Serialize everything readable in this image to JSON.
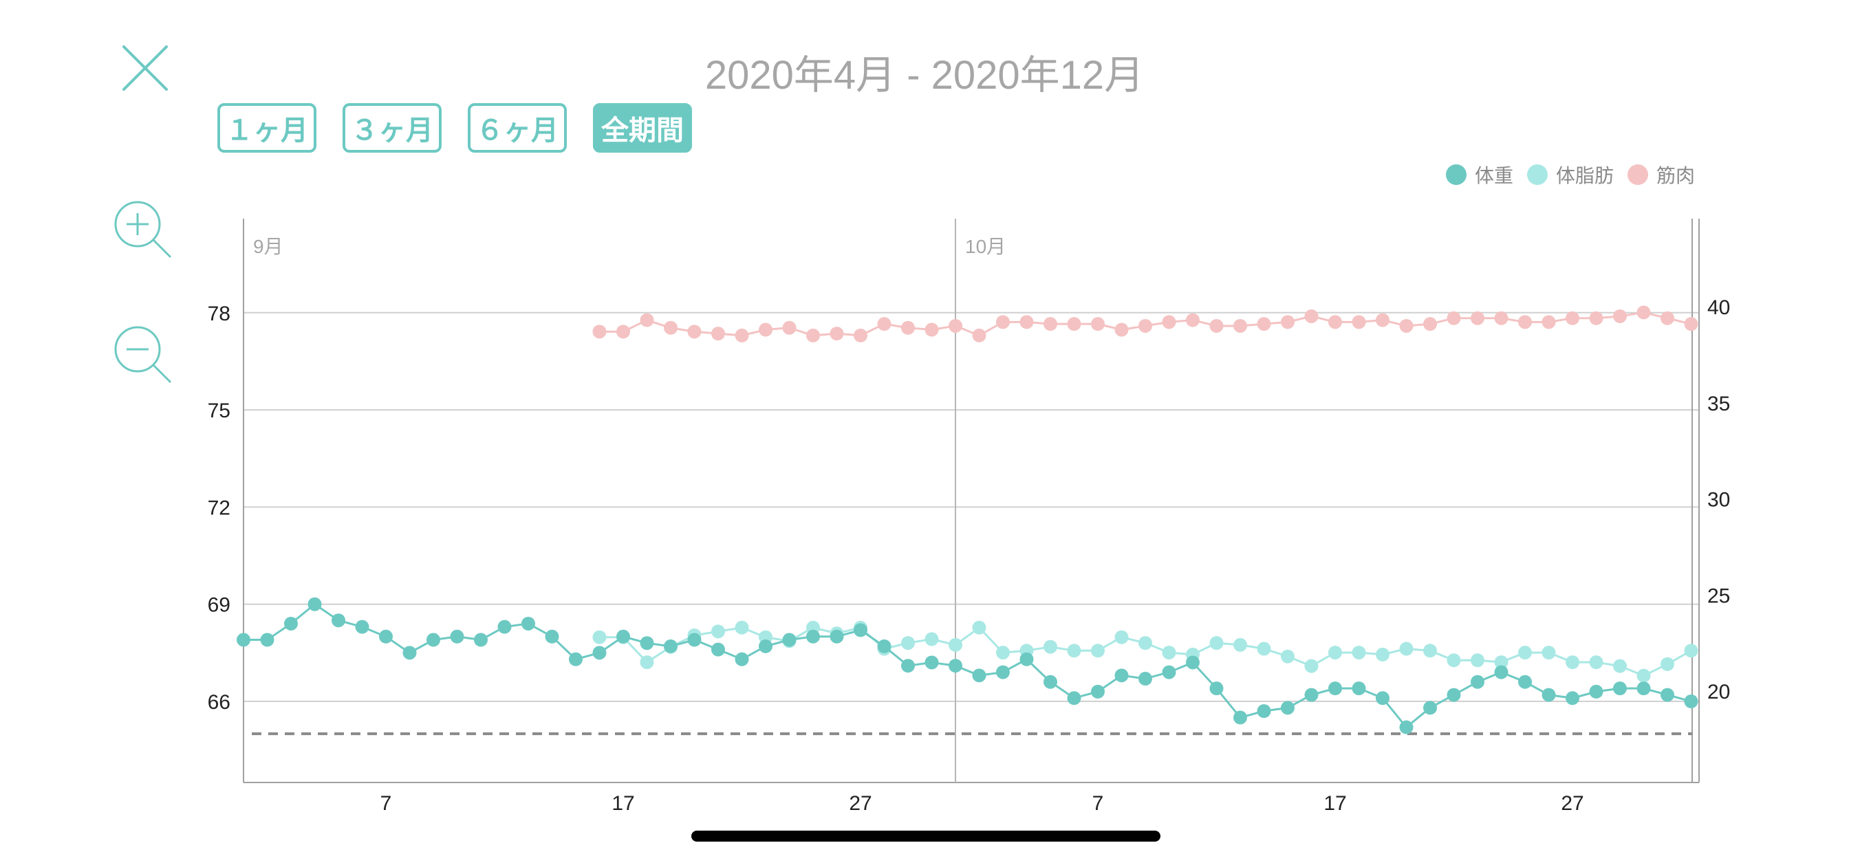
{
  "header": {
    "title": "2020年4月 - 2020年12月",
    "close_icon": "close-icon"
  },
  "period_tabs": [
    {
      "label": "１ヶ月",
      "active": false
    },
    {
      "label": "３ヶ月",
      "active": false
    },
    {
      "label": "６ヶ月",
      "active": false
    },
    {
      "label": "全期間",
      "active": true
    }
  ],
  "zoom": {
    "in_icon": "zoom-in-icon",
    "out_icon": "zoom-out-icon"
  },
  "colors": {
    "accent": "#6cc9c2",
    "weight": "#6cc9c2",
    "body_fat": "#a8e8e4",
    "muscle": "#f4c2c2",
    "grid": "#d0d0d0",
    "target_line": "#8a8a8a"
  },
  "chart_data": {
    "type": "line",
    "x_start_label": "9/1",
    "x_labels": [
      "7",
      "17",
      "27",
      "7",
      "17",
      "27"
    ],
    "x_label_positions": [
      6,
      16,
      26,
      36,
      46,
      56
    ],
    "month_labels": [
      "9月",
      "10月"
    ],
    "month_label_positions": [
      0,
      30
    ],
    "y_left": {
      "ticks": [
        "78",
        "75",
        "72",
        "69",
        "66"
      ],
      "tick_values": [
        78,
        75,
        72,
        69,
        66
      ],
      "range": [
        64.5,
        80.5
      ]
    },
    "y_right": {
      "ticks": [
        "40",
        "35",
        "30",
        "25",
        "20"
      ],
      "tick_values": [
        40,
        35,
        30,
        25,
        20
      ]
    },
    "target_line": 65,
    "grid": true,
    "legend": "top-right",
    "series": [
      {
        "name": "体重",
        "axis": "left",
        "x": [
          0,
          1,
          2,
          3,
          4,
          5,
          6,
          7,
          8,
          9,
          10,
          11,
          12,
          13,
          14,
          15,
          16,
          17,
          18,
          19,
          20,
          21,
          22,
          23,
          24,
          25,
          26,
          27,
          28,
          29,
          30,
          31,
          32,
          33,
          34,
          35,
          36,
          37,
          38,
          39,
          40,
          41,
          42,
          43,
          44,
          45,
          46,
          47,
          48,
          49,
          50,
          51,
          52,
          53,
          54,
          55,
          56,
          57,
          58,
          59,
          60,
          61
        ],
        "values": [
          67.9,
          67.9,
          68.4,
          69.0,
          68.5,
          68.3,
          68.0,
          67.5,
          67.9,
          68.0,
          67.9,
          68.3,
          68.4,
          68.0,
          67.3,
          67.5,
          68.0,
          67.8,
          67.7,
          67.9,
          67.6,
          67.3,
          67.7,
          67.9,
          68.0,
          68.0,
          68.2,
          67.7,
          67.1,
          67.2,
          67.1,
          66.8,
          66.9,
          67.3,
          66.6,
          66.1,
          66.3,
          66.8,
          66.7,
          66.9,
          67.2,
          66.4,
          65.5,
          65.7,
          65.8,
          66.2,
          66.4,
          66.4,
          66.1,
          65.2,
          65.8,
          66.2,
          66.6,
          66.9,
          66.6,
          66.2,
          66.1,
          66.3,
          66.4,
          66.4,
          66.2,
          66.0
        ]
      },
      {
        "name": "体脂肪",
        "axis": "right",
        "x": [
          15,
          16,
          17,
          18,
          19,
          20,
          21,
          22,
          23,
          24,
          25,
          26,
          27,
          28,
          29,
          30,
          31,
          32,
          33,
          34,
          35,
          36,
          37,
          38,
          39,
          40,
          41,
          42,
          43,
          44,
          45,
          46,
          47,
          48,
          49,
          50,
          51,
          52,
          53,
          54,
          55,
          56,
          57,
          58,
          59,
          60,
          61
        ],
        "values": [
          22.8,
          22.8,
          21.5,
          22.3,
          22.9,
          23.1,
          23.3,
          22.8,
          22.6,
          23.3,
          23.0,
          23.3,
          22.2,
          22.5,
          22.7,
          22.4,
          23.3,
          22.0,
          22.1,
          22.3,
          22.1,
          22.1,
          22.8,
          22.5,
          22.0,
          21.9,
          22.5,
          22.4,
          22.2,
          21.8,
          21.3,
          22.0,
          22.0,
          21.9,
          22.2,
          22.1,
          21.6,
          21.6,
          21.5,
          22.0,
          22.0,
          21.5,
          21.5,
          21.3,
          20.8,
          21.4,
          22.1
        ]
      },
      {
        "name": "筋肉",
        "axis": "right",
        "x": [
          15,
          16,
          17,
          18,
          19,
          20,
          21,
          22,
          23,
          24,
          25,
          26,
          27,
          28,
          29,
          30,
          31,
          32,
          33,
          34,
          35,
          36,
          37,
          38,
          39,
          40,
          41,
          42,
          43,
          44,
          45,
          46,
          47,
          48,
          49,
          50,
          51,
          52,
          53,
          54,
          55,
          56,
          57,
          58,
          59,
          60,
          61
        ],
        "values": [
          38.7,
          38.7,
          39.3,
          38.9,
          38.7,
          38.6,
          38.5,
          38.8,
          38.9,
          38.5,
          38.6,
          38.5,
          39.1,
          38.9,
          38.8,
          39.0,
          38.5,
          39.2,
          39.2,
          39.1,
          39.1,
          39.1,
          38.8,
          39.0,
          39.2,
          39.3,
          39.0,
          39.0,
          39.1,
          39.2,
          39.5,
          39.2,
          39.2,
          39.3,
          39.0,
          39.1,
          39.4,
          39.4,
          39.4,
          39.2,
          39.2,
          39.4,
          39.4,
          39.5,
          39.7,
          39.4,
          39.1
        ]
      }
    ]
  }
}
